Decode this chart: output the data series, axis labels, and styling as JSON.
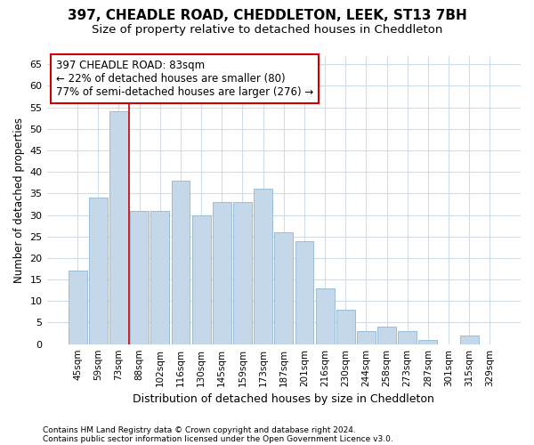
{
  "title1": "397, CHEADLE ROAD, CHEDDLETON, LEEK, ST13 7BH",
  "title2": "Size of property relative to detached houses in Cheddleton",
  "xlabel": "Distribution of detached houses by size in Cheddleton",
  "ylabel": "Number of detached properties",
  "bar_labels": [
    "45sqm",
    "59sqm",
    "73sqm",
    "88sqm",
    "102sqm",
    "116sqm",
    "130sqm",
    "145sqm",
    "159sqm",
    "173sqm",
    "187sqm",
    "201sqm",
    "216sqm",
    "230sqm",
    "244sqm",
    "258sqm",
    "273sqm",
    "287sqm",
    "301sqm",
    "315sqm",
    "329sqm"
  ],
  "bar_values": [
    17,
    34,
    54,
    31,
    31,
    38,
    30,
    33,
    33,
    36,
    26,
    24,
    13,
    8,
    3,
    4,
    3,
    1,
    0,
    2,
    0
  ],
  "bar_color": "#c5d8ea",
  "bar_edge_color": "#9bbdd4",
  "annotation_text": "397 CHEADLE ROAD: 83sqm\n← 22% of detached houses are smaller (80)\n77% of semi-detached houses are larger (276) →",
  "annotation_box_facecolor": "#ffffff",
  "annotation_box_edgecolor": "#cc0000",
  "vline_x": 2.5,
  "vline_color": "#cc0000",
  "yticks": [
    0,
    5,
    10,
    15,
    20,
    25,
    30,
    35,
    40,
    45,
    50,
    55,
    60,
    65
  ],
  "ylim": [
    0,
    67
  ],
  "footer1": "Contains HM Land Registry data © Crown copyright and database right 2024.",
  "footer2": "Contains public sector information licensed under the Open Government Licence v3.0.",
  "bg_color": "#ffffff",
  "grid_color": "#d0dce8",
  "title1_fontsize": 11,
  "title2_fontsize": 9.5
}
